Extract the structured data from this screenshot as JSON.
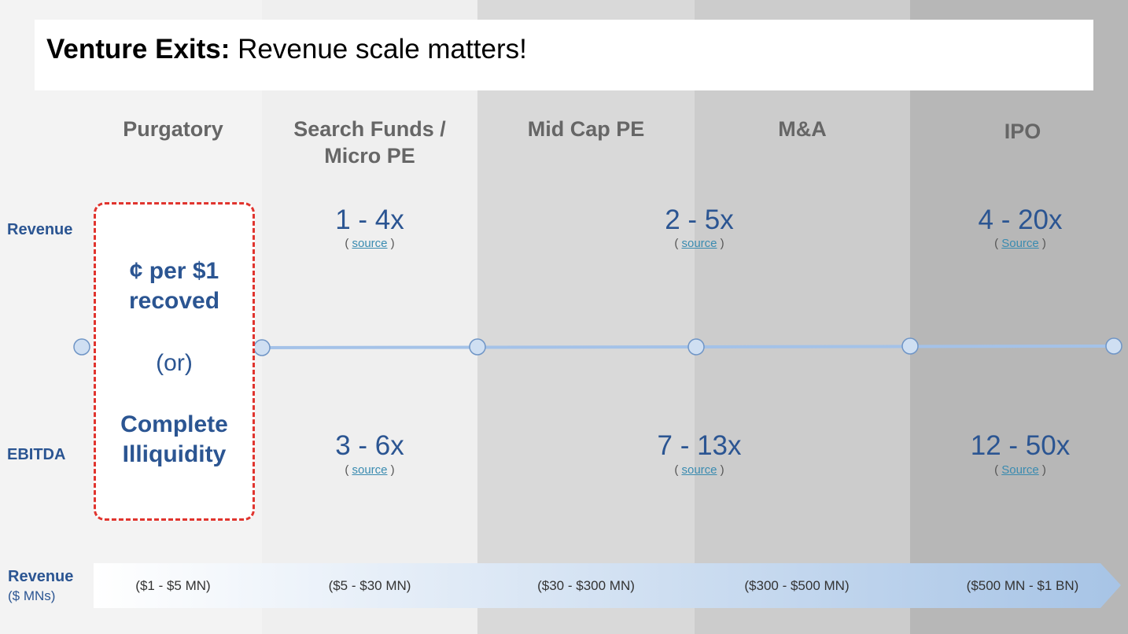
{
  "title": {
    "bold": "Venture Exits:",
    "rest": " Revenue scale matters!"
  },
  "columns": [
    {
      "head_line1": "Purgatory",
      "head_line2": ""
    },
    {
      "head_line1": "Search Funds /",
      "head_line2": "Micro PE"
    },
    {
      "head_line1": "Mid Cap PE",
      "head_line2": ""
    },
    {
      "head_line1": "M&A",
      "head_line2": ""
    },
    {
      "head_line1": "IPO",
      "head_line2": ""
    }
  ],
  "row_labels": {
    "revenue": "Revenue",
    "ebitda": "EBITDA"
  },
  "purgatory": {
    "line1": "¢ per $1",
    "line2": "recoved",
    "or": "(or)",
    "line3": "Complete",
    "line4": "Illiquidity"
  },
  "revenue_multiples": [
    {
      "value": "1 - 4x",
      "open": "( ",
      "link": "source",
      "close": " )"
    },
    {
      "value": "2 - 5x",
      "open": "( ",
      "link": "source",
      "close": " )"
    },
    {
      "value": "4 - 20x",
      "open": "( ",
      "link": "Source",
      "close": " )"
    }
  ],
  "ebitda_multiples": [
    {
      "value": "3 - 6x",
      "open": "( ",
      "link": "source",
      "close": " )"
    },
    {
      "value": "7 - 13x",
      "open": "( ",
      "link": "source",
      "close": " )"
    },
    {
      "value": "12 - 50x",
      "open": "( ",
      "link": "Source",
      "close": " )"
    }
  ],
  "bottom": {
    "label": "Revenue",
    "sublabel": "($ MNs)",
    "ranges": [
      "($1 - $5 MN)",
      "($5 - $30 MN)",
      "($30 - $300 MN)",
      "($300 - $500 MN)",
      "($500 MN - $1 BN)"
    ]
  },
  "colors": {
    "band1": "#f3f3f3",
    "band2": "#efefef",
    "band3": "#d9d9d9",
    "band4": "#cccccc",
    "band5": "#b7b7b7",
    "accent": "#2b5592",
    "dash": "#e0342e",
    "timeline": "#a4c2e8"
  }
}
